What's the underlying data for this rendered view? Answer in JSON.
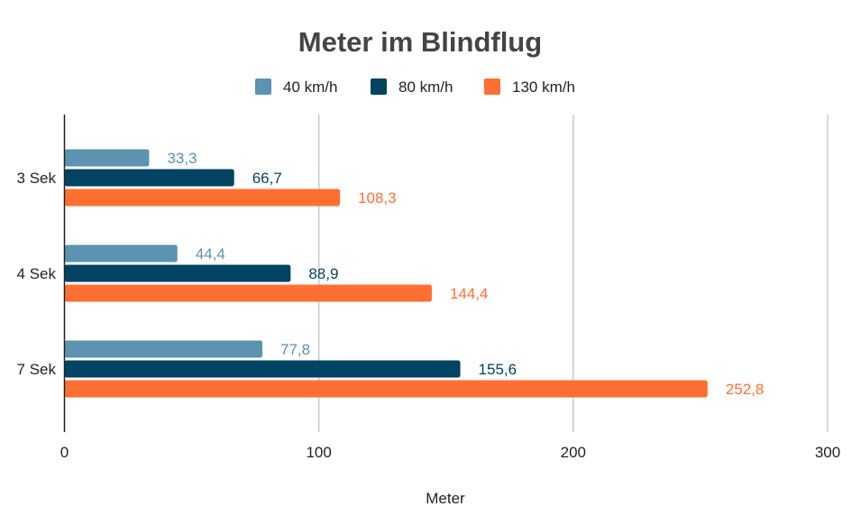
{
  "chart_data": {
    "type": "bar",
    "orientation": "horizontal",
    "title": "Meter im Blindflug",
    "xlabel": "Meter",
    "ylabel": "",
    "categories": [
      "3 Sek",
      "4 Sek",
      "7 Sek"
    ],
    "series": [
      {
        "name": "40 km/h",
        "color": "#5b93b0",
        "values": [
          33.3,
          44.4,
          77.8
        ],
        "labels": [
          "33,3",
          "44,4",
          "77,8"
        ]
      },
      {
        "name": "80 km/h",
        "color": "#004363",
        "values": [
          66.7,
          88.9,
          155.6
        ],
        "labels": [
          "66,7",
          "88,9",
          "155,6"
        ]
      },
      {
        "name": "130 km/h",
        "color": "#ff6f31",
        "values": [
          108.3,
          144.4,
          252.8
        ],
        "labels": [
          "108,3",
          "144,4",
          "252,8"
        ]
      }
    ],
    "xlim": [
      0,
      300
    ],
    "xticks": [
      0,
      100,
      200,
      300
    ],
    "xtick_labels": [
      "0",
      "100",
      "200",
      "300"
    ],
    "grid": true,
    "legend_position": "top"
  }
}
